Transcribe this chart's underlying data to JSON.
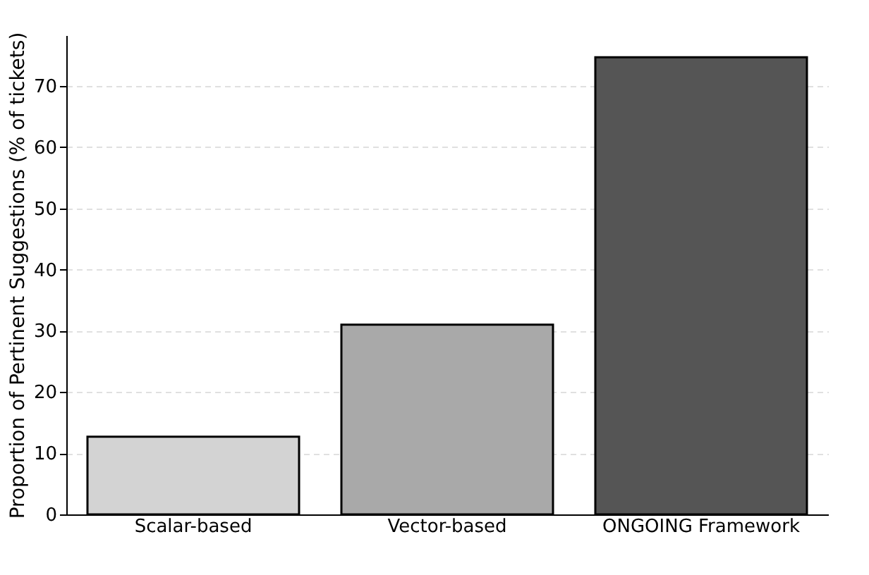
{
  "chart_data": {
    "type": "bar",
    "ylabel": "Proportion of Pertinent Suggestions (% of tickets)",
    "categories": [
      "Scalar-based",
      "Vector-based",
      "ONGOING Framework"
    ],
    "values": [
      12.7,
      31.0,
      74.7
    ],
    "colors": [
      "#d3d3d3",
      "#a9a9a9",
      "#555555"
    ],
    "ylim": [
      0,
      78.3
    ],
    "yticks": [
      0,
      10,
      20,
      30,
      40,
      50,
      60,
      70
    ],
    "grid": "y"
  }
}
